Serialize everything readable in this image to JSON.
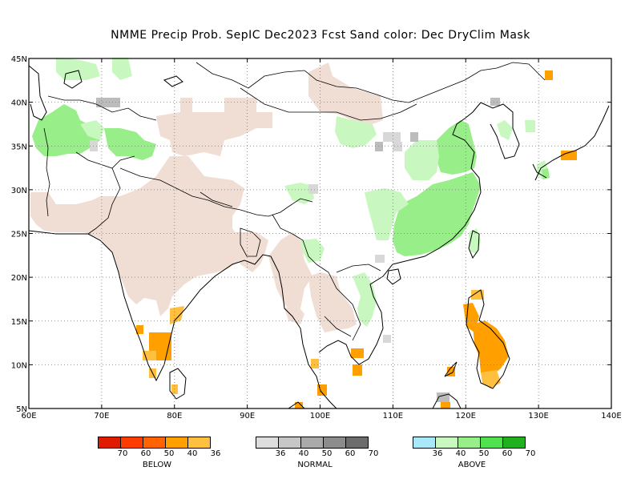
{
  "title": "NMME Precip Prob. SepIC  Dec2023 Fcst  Sand color: Dec DryClim Mask",
  "map": {
    "lon_range": [
      60,
      140
    ],
    "lat_range": [
      5,
      45
    ],
    "lon_labels": [
      "60E",
      "70E",
      "80E",
      "90E",
      "100E",
      "110E",
      "120E",
      "130E",
      "140E"
    ],
    "lat_labels": [
      "5N",
      "10N",
      "15N",
      "20N",
      "25N",
      "30N",
      "35N",
      "40N",
      "45N"
    ],
    "gridlines": "dotted"
  },
  "colors": {
    "dry_mask": "#f0ddd3",
    "below_36": "#ffc040",
    "below_40": "#ffa000",
    "above_36": "#c8f8c0",
    "above_40": "#98ee88",
    "normal_36": "#d8d8d8",
    "normal_40": "#bcbcbc"
  },
  "legend": {
    "below": {
      "label": "BELOW",
      "colors": [
        "#e01c00",
        "#ff3c00",
        "#ff6400",
        "#ffa000",
        "#ffc040"
      ],
      "ticks": [
        "70",
        "60",
        "50",
        "40",
        "36"
      ]
    },
    "normal": {
      "label": "NORMAL",
      "colors": [
        "#dddddd",
        "#c6c6c6",
        "#aaaaaa",
        "#8c8c8c",
        "#6c6c6c"
      ],
      "ticks": [
        "36",
        "40",
        "50",
        "60",
        "70"
      ]
    },
    "above": {
      "label": "ABOVE",
      "colors": [
        "#a8e8f8",
        "#c8f8c0",
        "#98ee88",
        "#50e050",
        "#20b020"
      ],
      "ticks": [
        "36",
        "40",
        "50",
        "60",
        "70"
      ]
    }
  }
}
